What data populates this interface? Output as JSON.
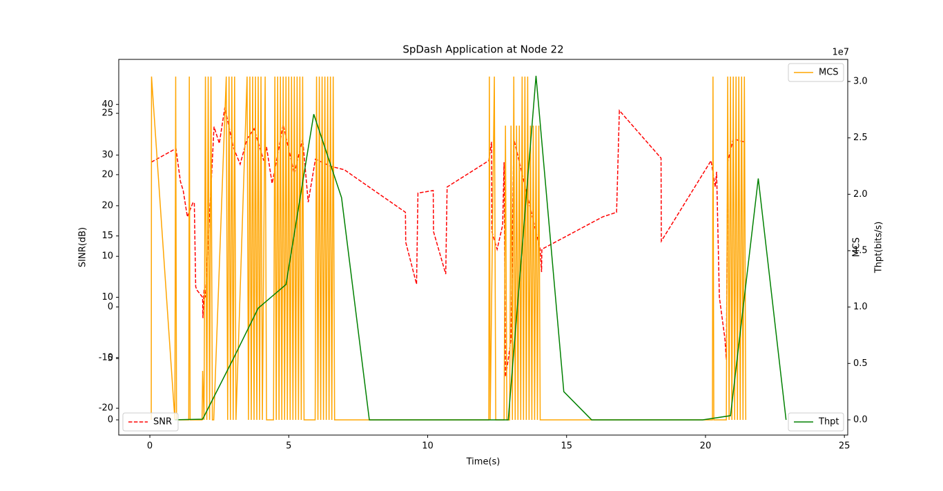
{
  "chart_data": {
    "type": "line",
    "title": "SpDash Application at Node 22",
    "x_label": "Time(s)",
    "y_label": "SINR(dB)",
    "y2_label": "MCS",
    "y3_label": "Thpt(bits/s)",
    "y3_offset_label": "1e7",
    "xlim": [
      -1.12,
      25.12
    ],
    "xticks": [
      0,
      5,
      10,
      15,
      20,
      25
    ],
    "ylim": [
      -25.3,
      48.9
    ],
    "yticks": [
      -20,
      -10,
      0,
      10,
      20,
      30,
      40
    ],
    "y2lim": [
      -1.24,
      29.4
    ],
    "y2ticks": [
      0,
      5,
      10,
      15,
      20,
      25
    ],
    "y3lim": [
      -1350000,
      31960000
    ],
    "y3ticks": [
      {
        "value": 0,
        "label": "0.0"
      },
      {
        "value": 5000000,
        "label": "0.5"
      },
      {
        "value": 10000000,
        "label": "1.0"
      },
      {
        "value": 15000000,
        "label": "1.5"
      },
      {
        "value": 20000000,
        "label": "2.0"
      },
      {
        "value": 25000000,
        "label": "2.5"
      },
      {
        "value": 30000000,
        "label": "3.0"
      }
    ],
    "series": [
      {
        "name": "SNR",
        "color": "#ff0000",
        "dashed": true,
        "axis": "y",
        "legend": "lower left",
        "x": [
          0.05,
          0.94,
          1.1,
          1.2,
          1.35,
          1.55,
          1.6,
          1.65,
          1.7,
          1.9,
          1.91,
          1.95,
          2.0,
          2.31,
          2.5,
          2.7,
          3.0,
          3.25,
          3.5,
          3.75,
          4.1,
          4.2,
          4.4,
          4.5,
          4.8,
          5.2,
          5.5,
          5.7,
          5.96,
          6.5,
          7.0,
          9.2,
          9.21,
          9.6,
          9.65,
          10.2,
          10.21,
          10.65,
          10.7,
          12.2,
          12.3,
          12.31,
          12.5,
          12.7,
          12.75,
          12.8,
          12.9,
          13.0,
          13.1,
          14.05,
          14.1,
          14.11,
          16.3,
          16.8,
          16.9,
          18.4,
          18.41,
          20.2,
          20.35,
          20.4,
          20.5,
          20.7,
          20.75,
          20.8,
          21.0,
          21.4
        ],
        "values": [
          28.6,
          31.3,
          24.8,
          23,
          17.8,
          20.6,
          20.6,
          4,
          3.3,
          1.9,
          -2.2,
          3.5,
          1.9,
          35.6,
          32.3,
          39.4,
          31.6,
          28.2,
          33.2,
          35.2,
          28.9,
          31.6,
          24.4,
          27.1,
          36,
          26.3,
          33.2,
          20.7,
          29.2,
          27.8,
          27.1,
          18.7,
          12.8,
          4.5,
          22.5,
          23,
          14.9,
          6.5,
          23.7,
          28.9,
          32.6,
          14.9,
          11.4,
          16.2,
          28.6,
          -13.8,
          -10.4,
          -6.3,
          33.2,
          11.4,
          6.9,
          11.4,
          17.8,
          18.7,
          38.8,
          29.4,
          13,
          28.9,
          23.7,
          26.7,
          1.9,
          -6.3,
          -10.4,
          28.6,
          33.2,
          32.6
        ]
      },
      {
        "name": "MCS",
        "color": "#ffa500",
        "dashed": false,
        "axis": "y2",
        "legend": "upper right",
        "x": [
          0.05,
          0.06,
          0.9,
          0.93,
          0.96,
          1.4,
          1.42,
          1.45,
          1.88,
          1.9,
          1.95,
          2.0,
          2.05,
          2.1,
          2.15,
          2.2,
          2.25,
          2.3,
          2.75,
          2.8,
          2.85,
          2.9,
          2.95,
          3.0,
          3.05,
          3.1,
          3.5,
          3.55,
          3.6,
          3.65,
          3.7,
          3.75,
          3.8,
          3.85,
          3.9,
          3.95,
          4.0,
          4.05,
          4.15,
          4.2,
          4.45,
          4.5,
          4.55,
          4.6,
          4.65,
          4.7,
          4.75,
          4.8,
          4.85,
          4.9,
          4.95,
          5.0,
          5.05,
          5.1,
          5.15,
          5.2,
          5.25,
          5.3,
          5.35,
          5.4,
          5.45,
          5.5,
          5.55,
          5.7,
          5.95,
          6.0,
          6.05,
          6.1,
          6.15,
          6.2,
          6.25,
          6.3,
          6.35,
          6.4,
          6.45,
          6.5,
          6.55,
          6.6,
          6.65,
          12.2,
          12.22,
          12.25,
          12.4,
          12.45,
          12.75,
          12.8,
          12.85,
          12.95,
          13.0,
          13.05,
          13.1,
          13.15,
          13.2,
          13.25,
          13.3,
          13.35,
          13.4,
          13.45,
          13.5,
          13.55,
          13.6,
          13.65,
          13.7,
          13.75,
          13.8,
          13.85,
          13.9,
          13.95,
          14.0,
          14.05,
          14.1,
          20.25,
          20.27,
          20.3,
          20.75,
          20.8,
          20.85,
          20.9,
          20.95,
          21.0,
          21.05,
          21.1,
          21.15,
          21.2,
          21.25,
          21.3,
          21.35,
          21.4,
          21.45
        ],
        "values": [
          0,
          28,
          0,
          28,
          0,
          0,
          28,
          0,
          0,
          4,
          0,
          28,
          0,
          28,
          0,
          28,
          0,
          0,
          28,
          0,
          28,
          0,
          28,
          0,
          28,
          0,
          28,
          0,
          28,
          0,
          28,
          0,
          28,
          0,
          28,
          0,
          28,
          0,
          28,
          0,
          0,
          28,
          0,
          28,
          0,
          28,
          0,
          28,
          0,
          28,
          0,
          28,
          0,
          28,
          0,
          28,
          0,
          28,
          0,
          28,
          0,
          28,
          0,
          0,
          0,
          28,
          0,
          28,
          0,
          28,
          0,
          28,
          0,
          28,
          0,
          28,
          0,
          28,
          0,
          0,
          28,
          0,
          28,
          0,
          0,
          24,
          0,
          0,
          24,
          0,
          28,
          0,
          24,
          0,
          24,
          0,
          28,
          0,
          28,
          0,
          28,
          0,
          24,
          0,
          24,
          0,
          24,
          0,
          24,
          0,
          0,
          0,
          28,
          0,
          0,
          28,
          0,
          28,
          0,
          28,
          0,
          28,
          0,
          28,
          0,
          28,
          0,
          28,
          0
        ]
      },
      {
        "name": "Thpt",
        "color": "#008000",
        "dashed": false,
        "axis": "y3",
        "legend": "lower right",
        "x": [
          0.9,
          1.9,
          3.0,
          3.9,
          4.9,
          5.9,
          6.9,
          7.9,
          12.9,
          13.9,
          14.9,
          15.9,
          19.9,
          20.9,
          21.9,
          22.9
        ],
        "values": [
          0,
          60000,
          5400000,
          9900000,
          12000000,
          27100000,
          19700000,
          0,
          0,
          30500000,
          2500000,
          0,
          0,
          370000,
          21400000,
          0
        ]
      }
    ]
  }
}
